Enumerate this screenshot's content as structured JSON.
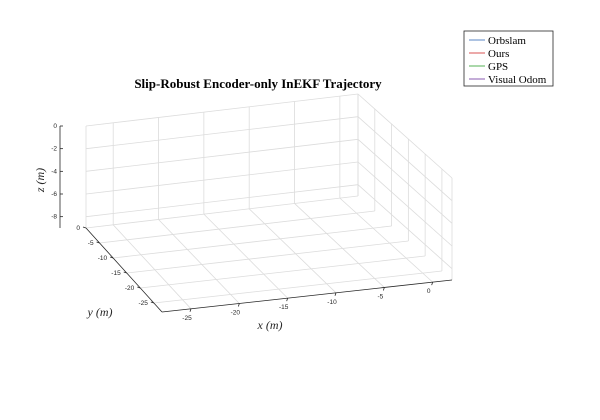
{
  "chart_data": {
    "type": "line",
    "title": "Slip-Robust Encoder-only InEKF Trajectory",
    "xlabel": "x (m)",
    "ylabel": "y (m)",
    "zlabel": "z (m)",
    "xlim": [
      -28,
      2
    ],
    "ylim": [
      -28,
      0
    ],
    "zlim": [
      -9,
      0
    ],
    "x_ticks": [
      "-25",
      "-20",
      "-15",
      "-10",
      "-5",
      "0"
    ],
    "y_ticks": [
      "0",
      "-5",
      "-10",
      "-15",
      "-20",
      "-25"
    ],
    "z_ticks": [
      "0",
      "-2",
      "-4",
      "-6",
      "-8"
    ],
    "grid": true,
    "legend_position": "top-right",
    "series": [
      {
        "name": "Orbslam",
        "color": "#5b87c6",
        "values": []
      },
      {
        "name": "Ours",
        "color": "#d95353",
        "values": []
      },
      {
        "name": "GPS",
        "color": "#55b055",
        "values": []
      },
      {
        "name": "Visual Odom",
        "color": "#8a5bb0",
        "values": []
      }
    ]
  }
}
